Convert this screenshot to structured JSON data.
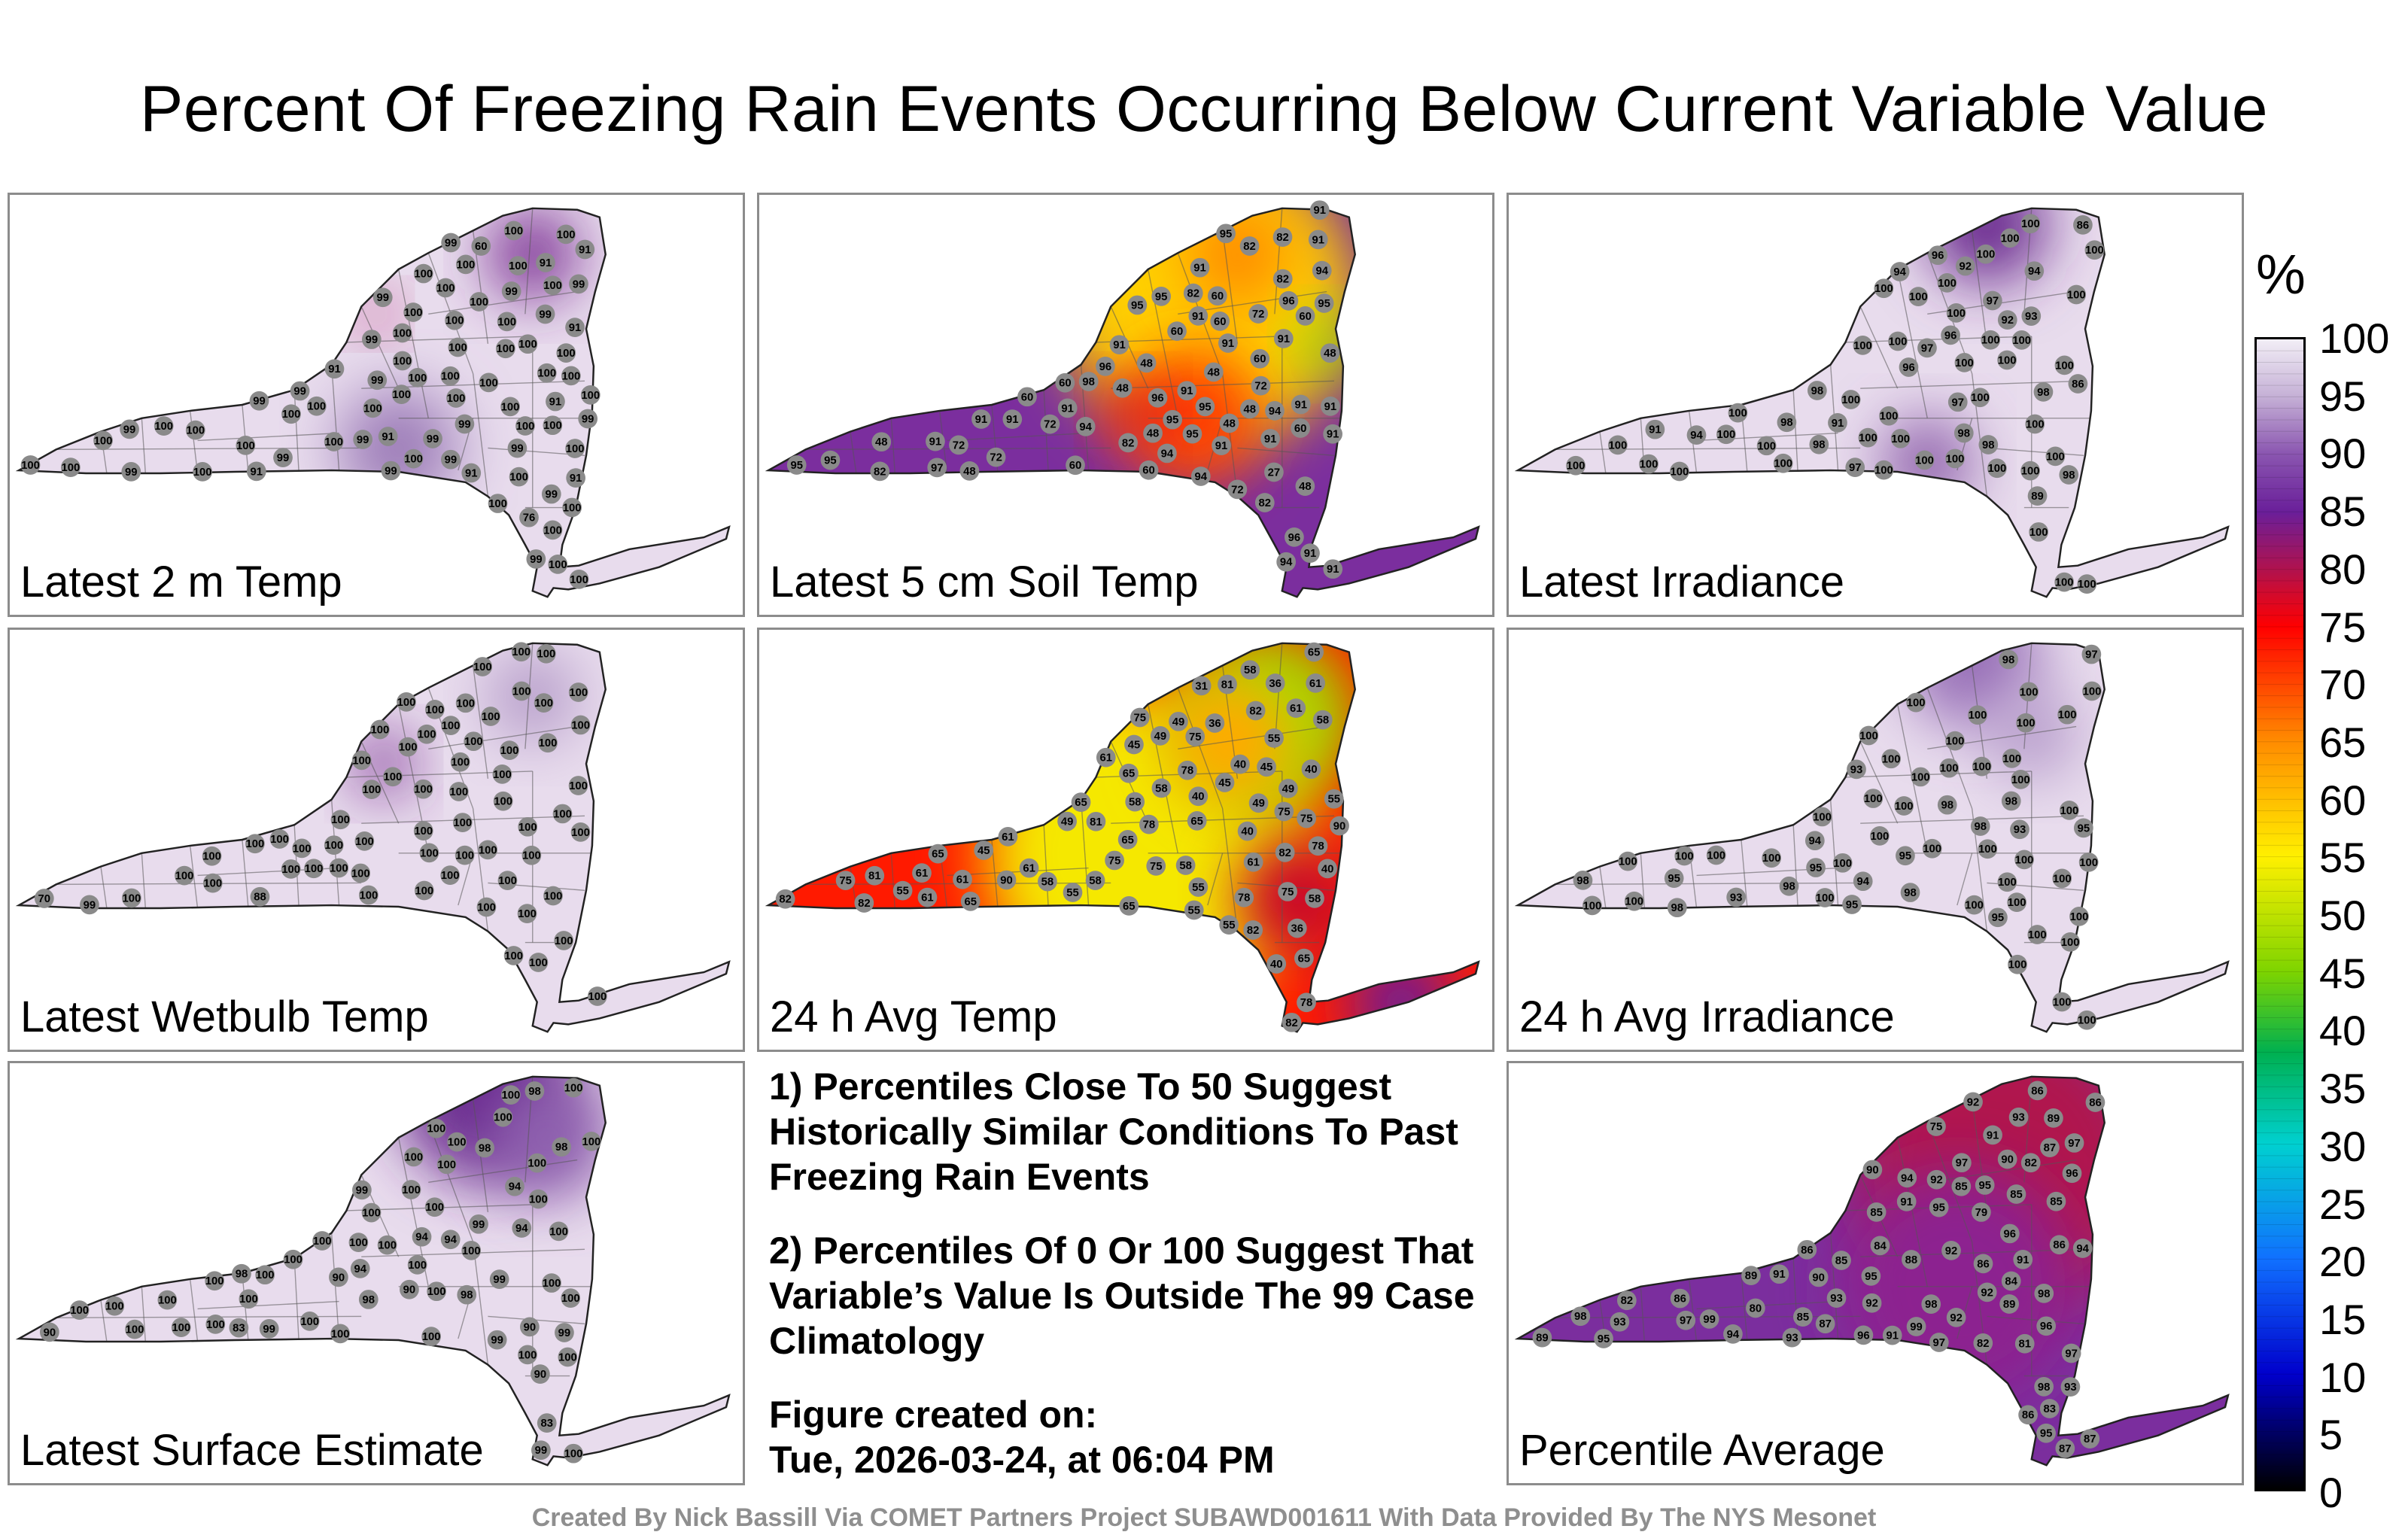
{
  "title": "Percent Of Freezing Rain Events Occurring Below Current Variable Value",
  "panels": [
    {
      "label": "Latest 2 m Temp",
      "base": "#e8dced",
      "base_value": 100,
      "blobs": [
        {
          "color": "#7a2d93",
          "v": 76
        },
        {
          "color": "#c0327a",
          "v": 60
        },
        {
          "color": "#9c7bb8",
          "v": 91
        }
      ],
      "stations": [
        "99",
        "91",
        "99",
        "99",
        "91",
        "99",
        "76",
        "99",
        "91",
        "91",
        "99",
        "91",
        "60",
        "99",
        "91",
        "91",
        "99",
        "99",
        "99",
        "100",
        "99",
        "91",
        "99",
        "100",
        "99",
        "100",
        "99",
        "100",
        "100",
        "100",
        "99",
        "100",
        "100",
        "99",
        "100",
        "91",
        "99",
        "100",
        "99",
        "100",
        "100",
        "100",
        "99",
        "100",
        "100",
        "100",
        "99",
        "100",
        "100",
        "100",
        "100",
        "100",
        "99",
        "100",
        "100",
        "100",
        "100",
        "100",
        "100",
        "100",
        "100",
        "100",
        "100",
        "100",
        "100",
        "100",
        "100",
        "100",
        "100",
        "100",
        "100",
        "100",
        "100",
        "100",
        "100",
        "100",
        "100",
        "100",
        "100"
      ]
    },
    {
      "label": "Latest 5 cm Soil Temp",
      "base": "#7b2e9e",
      "base_value": 91,
      "blobs": [
        {
          "color": "#ffd000",
          "v": 60
        },
        {
          "color": "#ff8a00",
          "v": 48
        },
        {
          "color": "#ff3b00",
          "v": 72
        },
        {
          "color": "#8fdc00",
          "v": 27
        },
        {
          "color": "#d4002a",
          "v": 82
        }
      ],
      "stations": [
        "60",
        "60",
        "48",
        "72",
        "60",
        "60",
        "60",
        "48",
        "72",
        "60",
        "48",
        "95",
        "48",
        "82",
        "48",
        "60",
        "72",
        "82",
        "48",
        "48",
        "72",
        "60",
        "82",
        "72",
        "48",
        "91",
        "48",
        "91",
        "48",
        "27",
        "94",
        "91",
        "95",
        "91",
        "94",
        "60",
        "91",
        "91",
        "72",
        "91",
        "91",
        "91",
        "94",
        "91",
        "95",
        "82",
        "94",
        "82",
        "91",
        "91",
        "96",
        "91",
        "91",
        "60",
        "82",
        "91",
        "95",
        "82",
        "94",
        "91",
        "95",
        "95",
        "91",
        "96",
        "95",
        "91",
        "96",
        "91",
        "97",
        "98",
        "95",
        "94",
        "96",
        "95"
      ]
    },
    {
      "label": "Latest Irradiance",
      "base": "#e8dced",
      "base_value": 100,
      "blobs": [
        {
          "color": "#6a2b8f",
          "v": 86
        },
        {
          "color": "#8a5aa8",
          "v": 92
        }
      ],
      "stations": [
        "86",
        "94",
        "100",
        "98",
        "91",
        "98",
        "97",
        "100",
        "100",
        "94",
        "98",
        "100",
        "96",
        "92",
        "93",
        "97",
        "91",
        "98",
        "94",
        "100",
        "96",
        "92",
        "100",
        "98",
        "98",
        "100",
        "100",
        "96",
        "100",
        "100",
        "100",
        "100",
        "100",
        "97",
        "100",
        "100",
        "98",
        "100",
        "100",
        "100",
        "97",
        "100",
        "100",
        "100",
        "100",
        "100",
        "100",
        "86",
        "100",
        "100",
        "100",
        "89",
        "100",
        "100",
        "100",
        "100",
        "100",
        "100",
        "100",
        "100",
        "100",
        "100",
        "100",
        "100"
      ]
    },
    {
      "label": "Latest Wetbulb Temp",
      "base": "#e8dced",
      "base_value": 100,
      "blobs": [
        {
          "color": "#7a2d93",
          "v": 70
        },
        {
          "color": "#b49ac8",
          "v": 88
        }
      ],
      "stations": [
        "100",
        "100",
        "100",
        "100",
        "100",
        "99",
        "88",
        "100",
        "100",
        "100",
        "70",
        "100",
        "100",
        "100",
        "100",
        "100",
        "100",
        "100",
        "100",
        "100",
        "100",
        "100",
        "100",
        "100",
        "100",
        "100",
        "100",
        "100",
        "100",
        "100",
        "100",
        "100",
        "100",
        "100",
        "100",
        "100",
        "100",
        "100",
        "100",
        "100",
        "100",
        "100",
        "100",
        "100",
        "100",
        "100",
        "100",
        "100",
        "100",
        "100",
        "100",
        "100",
        "100",
        "100",
        "100",
        "100",
        "100",
        "100",
        "100",
        "100",
        "100",
        "100",
        "100",
        "100"
      ]
    },
    {
      "label": "24 h Avg Temp",
      "base": "#ff1a00",
      "base_value": 75,
      "blobs": [
        {
          "color": "#f5e800",
          "v": 55
        },
        {
          "color": "#9be000",
          "v": 36
        },
        {
          "color": "#ffaa00",
          "v": 61
        },
        {
          "color": "#c8002a",
          "v": 82
        },
        {
          "color": "#6a1f9a",
          "v": 90
        }
      ],
      "stations": [
        "61",
        "55",
        "49",
        "65",
        "55",
        "36",
        "40",
        "31",
        "78",
        "58",
        "40",
        "36",
        "61",
        "36",
        "65",
        "40",
        "40",
        "45",
        "61",
        "65",
        "45",
        "49",
        "49",
        "81",
        "75",
        "65",
        "65",
        "78",
        "75",
        "55",
        "81",
        "75",
        "61",
        "55",
        "75",
        "78",
        "78",
        "49",
        "45",
        "75",
        "78",
        "55",
        "61",
        "58",
        "65",
        "82",
        "61",
        "40",
        "45",
        "65",
        "55",
        "61",
        "61",
        "65",
        "58",
        "58",
        "82",
        "58",
        "40",
        "58",
        "75",
        "61",
        "58",
        "75",
        "49",
        "82",
        "55",
        "58",
        "75",
        "65",
        "82",
        "81",
        "82",
        "82",
        "90",
        "90"
      ]
    },
    {
      "label": "24 h Avg Irradiance",
      "base": "#e8dced",
      "base_value": 100,
      "blobs": [
        {
          "color": "#9870b8",
          "v": 93
        },
        {
          "color": "#b69bcb",
          "v": 95
        }
      ],
      "stations": [
        "93",
        "95",
        "98",
        "95",
        "94",
        "100",
        "98",
        "94",
        "100",
        "100",
        "98",
        "93",
        "95",
        "100",
        "100",
        "95",
        "98",
        "100",
        "100",
        "95",
        "93",
        "100",
        "100",
        "100",
        "98",
        "100",
        "100",
        "100",
        "95",
        "100",
        "100",
        "100",
        "98",
        "100",
        "100",
        "100",
        "100",
        "100",
        "98",
        "100",
        "100",
        "100",
        "100",
        "97",
        "98",
        "100",
        "100",
        "100",
        "100",
        "100",
        "100",
        "100",
        "100",
        "100",
        "100",
        "100",
        "100",
        "100",
        "100",
        "100",
        "100"
      ]
    },
    {
      "label": "Latest Surface Estimate",
      "base": "#e8dced",
      "base_value": 100,
      "blobs": [
        {
          "color": "#6a2b8f",
          "v": 83
        },
        {
          "color": "#8d5fae",
          "v": 90
        }
      ],
      "stations": [
        "83",
        "94",
        "98",
        "90",
        "99",
        "90",
        "94",
        "90",
        "94",
        "99",
        "98",
        "94",
        "83",
        "98",
        "100",
        "90",
        "94",
        "99",
        "100",
        "99",
        "98",
        "100",
        "100",
        "98",
        "100",
        "100",
        "100",
        "99",
        "100",
        "100",
        "99",
        "100",
        "100",
        "100",
        "100",
        "100",
        "100",
        "98",
        "100",
        "100",
        "100",
        "100",
        "100",
        "90",
        "100",
        "99",
        "100",
        "100",
        "100",
        "100",
        "100",
        "100",
        "100",
        "100",
        "100",
        "100",
        "100",
        "100",
        "100",
        "100",
        "100",
        "100",
        "100"
      ]
    },
    {
      "label": "Percentile Average",
      "base": "#7b2e9e",
      "base_value": 93,
      "blobs": [
        {
          "color": "#b0124e",
          "v": 80
        },
        {
          "color": "#8c2090",
          "v": 86
        }
      ],
      "stations": [
        "82",
        "85",
        "85",
        "87",
        "86",
        "89",
        "85",
        "83",
        "82",
        "82",
        "86",
        "86",
        "85",
        "79",
        "86",
        "75",
        "90",
        "81",
        "80",
        "85",
        "88",
        "85",
        "84",
        "86",
        "87",
        "89",
        "84",
        "95",
        "86",
        "96",
        "91",
        "93",
        "95",
        "94",
        "87",
        "86",
        "93",
        "96",
        "95",
        "93",
        "92",
        "90",
        "91",
        "95",
        "92",
        "91",
        "94",
        "92",
        "90",
        "89",
        "92",
        "93",
        "97",
        "96",
        "91",
        "89",
        "87",
        "91",
        "92",
        "95",
        "92",
        "93",
        "96",
        "94",
        "97",
        "97",
        "98",
        "97",
        "98",
        "97",
        "99",
        "99",
        "98",
        "98"
      ]
    }
  ],
  "colorbar": {
    "unit": "%",
    "ticks": [
      "100",
      "95",
      "90",
      "85",
      "80",
      "75",
      "70",
      "65",
      "60",
      "55",
      "50",
      "45",
      "40",
      "35",
      "30",
      "25",
      "20",
      "15",
      "10",
      "5",
      "0"
    ]
  },
  "notes": [
    "1) Percentiles Close To 50 Suggest Historically Similar Conditions To Past Freezing Rain Events",
    "2) Percentiles Of 0 Or 100 Suggest That Variable’s Value Is Outside The 99 Case Climatology",
    "Figure created on:",
    "Tue, 2026-03-24, at 06:04 PM"
  ],
  "credit": "Created By Nick Bassill Via COMET Partners Project SUBAWD001611 With Data Provided By The NYS Mesonet"
}
